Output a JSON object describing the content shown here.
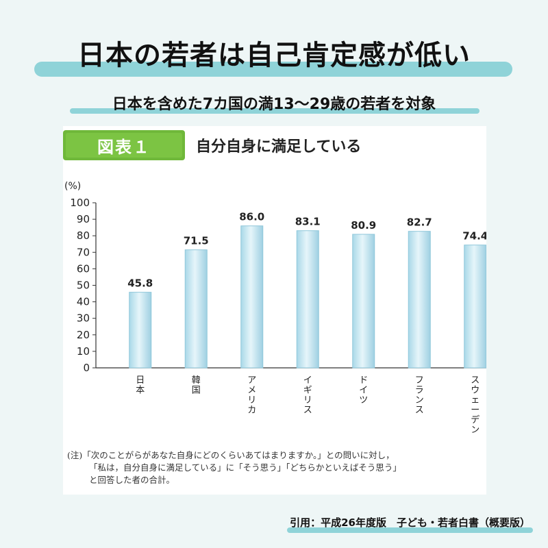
{
  "header": {
    "title": "日本の若者は自己肯定感が低い",
    "subtitle": "日本を含めた7カ国の満13〜29歳の若者を対象"
  },
  "figure": {
    "badge": "図表１",
    "title": "自分自身に満足している"
  },
  "chart_data": {
    "type": "bar",
    "categories": [
      "日本",
      "韓国",
      "アメリカ",
      "イギリス",
      "ドイツ",
      "フランス",
      "スウェーデン"
    ],
    "values": [
      45.8,
      71.5,
      86.0,
      83.1,
      80.9,
      82.7,
      74.4
    ],
    "value_labels": [
      "45.8",
      "71.5",
      "86.0",
      "83.1",
      "80.9",
      "82.7",
      "74.4"
    ],
    "unit_label": "(%)",
    "ylim": [
      0,
      100
    ],
    "yticks": [
      "0",
      "10",
      "20",
      "30",
      "40",
      "50",
      "60",
      "70",
      "80",
      "90",
      "100"
    ],
    "bar_color": "#bfe3ef",
    "bar_edge_color": "#8fc7da",
    "axis_color": "#333333",
    "grid": false,
    "legend": "none"
  },
  "note": {
    "line1": "(注)「次のことがらがあなた自身にどのくらいあてはまりますか。」との問いに対し，",
    "line2": "「私は，自分自身に満足している」に「そう思う」「どちらかといえばそう思う」",
    "line3": "と回答した者の合計。"
  },
  "citation": "引用：平成26年度版　子ども・若者白書（概要版）",
  "colors": {
    "background": "#eef6f6",
    "accent": "#8fd3d8",
    "badge": "#7cc443"
  }
}
